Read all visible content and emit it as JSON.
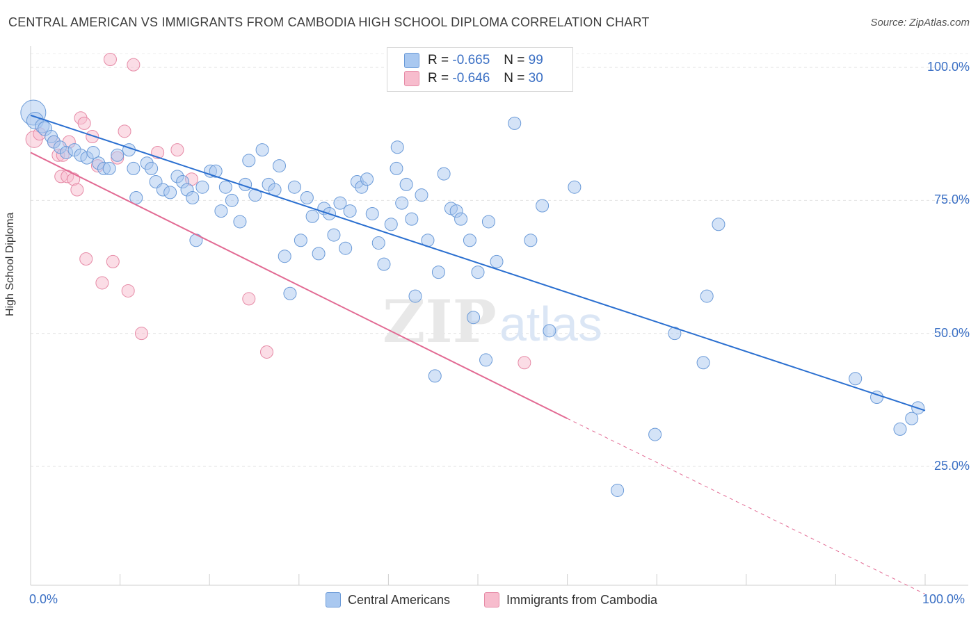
{
  "title": "CENTRAL AMERICAN VS IMMIGRANTS FROM CAMBODIA HIGH SCHOOL DIPLOMA CORRELATION CHART",
  "source": "Source: ZipAtlas.com",
  "watermark": {
    "zip": "ZIP",
    "atlas": "atlas"
  },
  "legend_top": {
    "rows": [
      {
        "r_label": "R = ",
        "r_value": "-0.665",
        "n_label": "N = ",
        "n_value": "99",
        "color": "#a9c8f0",
        "stroke": "#6a9ad8"
      },
      {
        "r_label": "R = ",
        "r_value": "-0.646",
        "n_label": "N = ",
        "n_value": "30",
        "color": "#f7bccd",
        "stroke": "#e68aa6"
      }
    ]
  },
  "legend_bottom": [
    {
      "label": "Central Americans",
      "color": "#a9c8f0",
      "stroke": "#6a9ad8"
    },
    {
      "label": "Immigrants from Cambodia",
      "color": "#f7bccd",
      "stroke": "#e68aa6"
    }
  ],
  "chart_data": {
    "type": "scatter",
    "title": "CENTRAL AMERICAN VS IMMIGRANTS FROM CAMBODIA HIGH SCHOOL DIPLOMA CORRELATION CHART",
    "xlabel": "",
    "ylabel": "High School Diploma",
    "xlim": [
      0,
      100
    ],
    "ylim": [
      0,
      103
    ],
    "x_tick_labels": [
      "0.0%",
      "100.0%"
    ],
    "y_ticks": [
      {
        "value": 25,
        "label": "25.0%"
      },
      {
        "value": 50,
        "label": "50.0%"
      },
      {
        "value": 75,
        "label": "75.0%"
      },
      {
        "value": 100,
        "label": "100.0%"
      }
    ],
    "grid": true,
    "legend_position": "bottom",
    "series": [
      {
        "name": "Central Americans",
        "color": "#a9c8f0",
        "stroke": "#6a9ad8",
        "line_color": "#2a6fd0",
        "trend": {
          "x0": 0,
          "y0": 91,
          "x1": 100,
          "y1": 35.5,
          "dashed_to": null
        },
        "points": [
          [
            0.3,
            91.5,
            18
          ],
          [
            0.5,
            90,
            12
          ],
          [
            1.3,
            89,
            10
          ],
          [
            1.6,
            88.5,
            10
          ],
          [
            2.3,
            87,
            9
          ],
          [
            2.6,
            86,
            9
          ],
          [
            3.3,
            85,
            9
          ],
          [
            4.0,
            84,
            9
          ],
          [
            4.9,
            84.5,
            9
          ],
          [
            5.6,
            83.5,
            9
          ],
          [
            6.3,
            83,
            9
          ],
          [
            7.0,
            84,
            9
          ],
          [
            7.6,
            82,
            9
          ],
          [
            8.2,
            81,
            9
          ],
          [
            8.8,
            81,
            9
          ],
          [
            9.7,
            83.5,
            9
          ],
          [
            11,
            84.5,
            9
          ],
          [
            11.5,
            81,
            9
          ],
          [
            11.8,
            75.5,
            9
          ],
          [
            13,
            82,
            9
          ],
          [
            13.5,
            81,
            9
          ],
          [
            14,
            78.5,
            9
          ],
          [
            14.8,
            77,
            9
          ],
          [
            15.6,
            76.5,
            9
          ],
          [
            16.4,
            79.5,
            9
          ],
          [
            17,
            78.5,
            9
          ],
          [
            17.5,
            77,
            9
          ],
          [
            18.1,
            75.5,
            9
          ],
          [
            18.5,
            67.5,
            9
          ],
          [
            19.2,
            77.5,
            9
          ],
          [
            20.1,
            80.5,
            9
          ],
          [
            20.7,
            80.5,
            9
          ],
          [
            21.3,
            73,
            9
          ],
          [
            21.8,
            77.5,
            9
          ],
          [
            22.5,
            75,
            9
          ],
          [
            23.4,
            71,
            9
          ],
          [
            24,
            78,
            9
          ],
          [
            24.4,
            82.5,
            9
          ],
          [
            25.1,
            76,
            9
          ],
          [
            25.9,
            84.5,
            9
          ],
          [
            26.6,
            78,
            9
          ],
          [
            27.3,
            77,
            9
          ],
          [
            27.8,
            81.5,
            9
          ],
          [
            28.4,
            64.5,
            9
          ],
          [
            29,
            57.5,
            9
          ],
          [
            29.5,
            77.5,
            9
          ],
          [
            30.2,
            67.5,
            9
          ],
          [
            30.9,
            75.5,
            9
          ],
          [
            31.5,
            72,
            9
          ],
          [
            32.2,
            65,
            9
          ],
          [
            32.8,
            73.5,
            9
          ],
          [
            33.4,
            72.5,
            9
          ],
          [
            33.9,
            68.5,
            9
          ],
          [
            34.6,
            74.5,
            9
          ],
          [
            35.2,
            66,
            9
          ],
          [
            35.7,
            73,
            9
          ],
          [
            36.5,
            78.5,
            9
          ],
          [
            37,
            77.5,
            9
          ],
          [
            37.6,
            79,
            9
          ],
          [
            38.2,
            72.5,
            9
          ],
          [
            38.9,
            67,
            9
          ],
          [
            39.5,
            63,
            9
          ],
          [
            40.3,
            70.5,
            9
          ],
          [
            40.9,
            81,
            9
          ],
          [
            41,
            85,
            9
          ],
          [
            41.5,
            74.5,
            9
          ],
          [
            42,
            78,
            9
          ],
          [
            42.6,
            71.5,
            9
          ],
          [
            43,
            57,
            9
          ],
          [
            43.7,
            76,
            9
          ],
          [
            44.4,
            67.5,
            9
          ],
          [
            45.2,
            42,
            9
          ],
          [
            45.6,
            61.5,
            9
          ],
          [
            46.2,
            80,
            9
          ],
          [
            47,
            73.5,
            9
          ],
          [
            47.6,
            73,
            9
          ],
          [
            48.1,
            71.5,
            9
          ],
          [
            49.1,
            67.5,
            9
          ],
          [
            49.5,
            53,
            9
          ],
          [
            50,
            61.5,
            9
          ],
          [
            50.9,
            45,
            9
          ],
          [
            51.2,
            71,
            9
          ],
          [
            52.1,
            63.5,
            9
          ],
          [
            54.1,
            89.5,
            9
          ],
          [
            55.9,
            67.5,
            9
          ],
          [
            57.2,
            74,
            9
          ],
          [
            58,
            50.5,
            9
          ],
          [
            60.8,
            77.5,
            9
          ],
          [
            65.6,
            20.5,
            9
          ],
          [
            69.8,
            31,
            9
          ],
          [
            72,
            50,
            9
          ],
          [
            75.2,
            44.5,
            9
          ],
          [
            75.6,
            57,
            9
          ],
          [
            76.9,
            70.5,
            9
          ],
          [
            92.2,
            41.5,
            9
          ],
          [
            94.6,
            38,
            9
          ],
          [
            97.2,
            32,
            9
          ],
          [
            98.5,
            34,
            9
          ],
          [
            99.2,
            36,
            9
          ]
        ]
      },
      {
        "name": "Immigrants from Cambodia",
        "color": "#f7bccd",
        "stroke": "#e68aa6",
        "line_color": "#e26a93",
        "trend": {
          "x0": 0,
          "y0": 84,
          "x1": 60,
          "y1": 34,
          "dashed_to": {
            "x": 100,
            "y": 1
          }
        },
        "points": [
          [
            0.4,
            86.5,
            12
          ],
          [
            1.0,
            87.5,
            9
          ],
          [
            2.6,
            86,
            9
          ],
          [
            3.1,
            83.5,
            9
          ],
          [
            3.4,
            79.5,
            9
          ],
          [
            3.6,
            83.5,
            9
          ],
          [
            4.1,
            79.5,
            9
          ],
          [
            4.3,
            86,
            9
          ],
          [
            4.8,
            79,
            9
          ],
          [
            5.2,
            77,
            9
          ],
          [
            5.6,
            90.5,
            9
          ],
          [
            6.0,
            89.5,
            9
          ],
          [
            6.2,
            64,
            9
          ],
          [
            6.9,
            87,
            9
          ],
          [
            7.5,
            81.5,
            9
          ],
          [
            8.0,
            59.5,
            9
          ],
          [
            8.9,
            101.5,
            9
          ],
          [
            9.2,
            63.5,
            9
          ],
          [
            9.7,
            83,
            9
          ],
          [
            10.5,
            88,
            9
          ],
          [
            10.9,
            58,
            9
          ],
          [
            11.5,
            100.5,
            9
          ],
          [
            12.4,
            50,
            9
          ],
          [
            14.2,
            84,
            9
          ],
          [
            16.4,
            84.5,
            9
          ],
          [
            18.0,
            79,
            9
          ],
          [
            24.4,
            56.5,
            9
          ],
          [
            26.4,
            46.5,
            9
          ],
          [
            44.1,
            100.5,
            9
          ],
          [
            55.2,
            44.5,
            9
          ]
        ]
      }
    ]
  }
}
